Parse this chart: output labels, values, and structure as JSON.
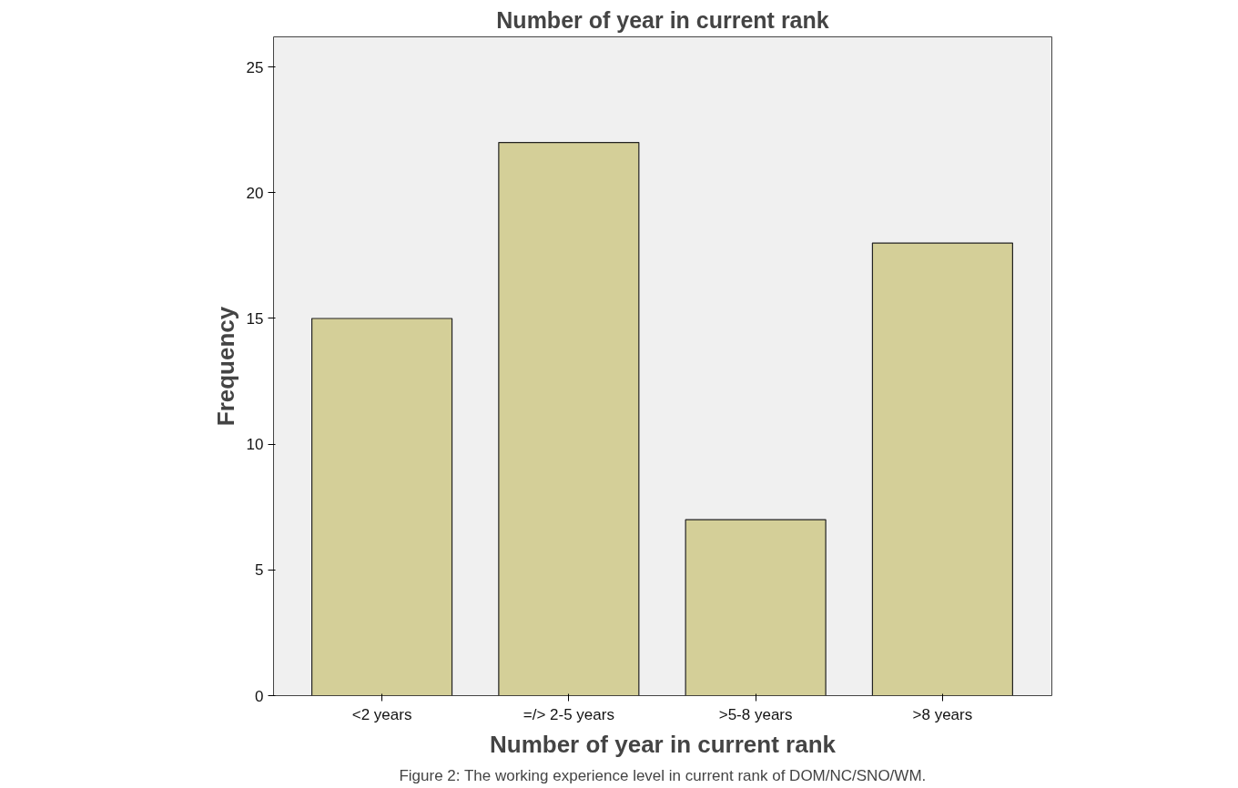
{
  "chart_data": {
    "type": "bar",
    "title": "Number of year in current rank",
    "xlabel": "Number of year in current rank",
    "ylabel": "Frequency",
    "categories": [
      "<2 years",
      "=/> 2-5 years",
      ">5-8 years",
      ">8 years"
    ],
    "values": [
      15,
      22,
      7,
      18
    ],
    "color": "#d4cf98",
    "ylim": [
      0,
      26.2
    ],
    "yticks": [
      0,
      5,
      10,
      15,
      20,
      25
    ],
    "grid": false,
    "annotations": [
      "Figure 2: The working experience level in current rank of DOM/NC/SNO/WM."
    ]
  }
}
